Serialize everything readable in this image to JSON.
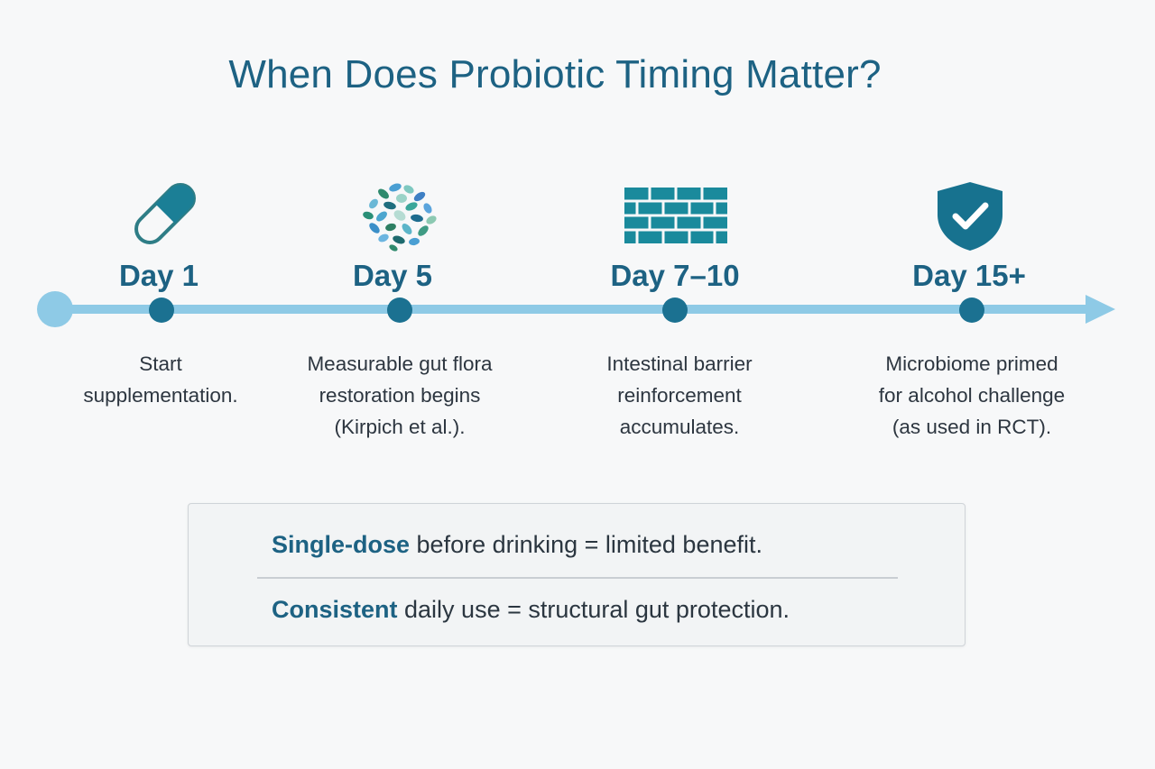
{
  "title": "When Does Probiotic Timing Matter?",
  "milestones": [
    {
      "day": "Day 1",
      "icon": "capsule-icon",
      "desc": [
        "Start",
        "supplementation."
      ]
    },
    {
      "day": "Day 5",
      "icon": "bacteria-cluster-icon",
      "desc": [
        "Measurable gut flora",
        "restoration begins",
        "(Kirpich et al.)."
      ]
    },
    {
      "day": "Day 7–10",
      "icon": "brick-wall-icon",
      "desc": [
        "Intestinal barrier",
        "reinforcement",
        "accumulates."
      ]
    },
    {
      "day": "Day 15+",
      "icon": "shield-check-icon",
      "desc": [
        "Microbiome primed",
        "for alcohol challenge",
        "(as used in RCT)."
      ]
    }
  ],
  "note": {
    "line1": {
      "em": "Single-dose",
      "rest": " before drinking = limited benefit."
    },
    "line2": {
      "em": "Consistent",
      "rest": " daily use = structural gut protection."
    }
  },
  "colors": {
    "title": "#1d6283",
    "timeline": "#8ecae6",
    "node": "#1b7191",
    "icon_teal": "#1a8a9c",
    "shield": "#17728f"
  }
}
